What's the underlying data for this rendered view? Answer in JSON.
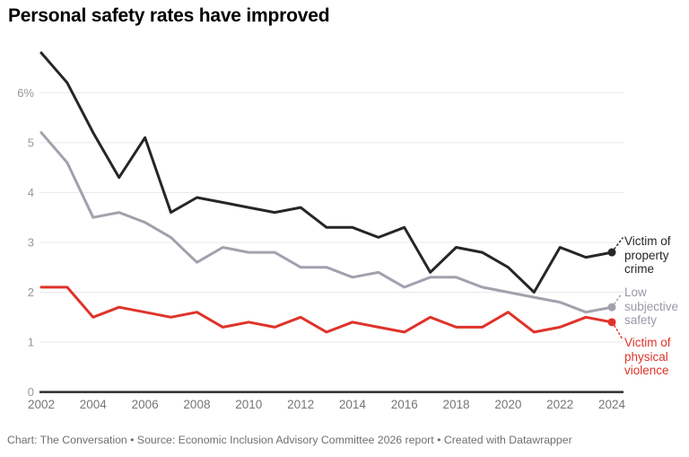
{
  "chart_data": {
    "type": "line",
    "title": "Personal safety rates have improved",
    "x": [
      2002,
      2003,
      2004,
      2005,
      2006,
      2007,
      2008,
      2009,
      2010,
      2011,
      2012,
      2013,
      2014,
      2015,
      2016,
      2017,
      2018,
      2019,
      2020,
      2021,
      2022,
      2023,
      2024
    ],
    "x_tick_labels": [
      "2002",
      "2004",
      "2006",
      "2008",
      "2010",
      "2012",
      "2014",
      "2016",
      "2018",
      "2020",
      "2022",
      "2024"
    ],
    "y_ticks": [
      {
        "value": 0,
        "label": "0"
      },
      {
        "value": 1,
        "label": "1"
      },
      {
        "value": 2,
        "label": "2"
      },
      {
        "value": 3,
        "label": "3"
      },
      {
        "value": 4,
        "label": "4"
      },
      {
        "value": 5,
        "label": "5"
      },
      {
        "value": 6,
        "label": "6%"
      }
    ],
    "ylim": [
      0,
      7
    ],
    "grid": "horizontal-only",
    "legend_position": "right-of-line-ends",
    "series": [
      {
        "name": "Victim of property crime",
        "color": "#262626",
        "values": [
          6.8,
          6.2,
          5.2,
          4.3,
          5.1,
          3.6,
          3.9,
          3.8,
          3.7,
          3.6,
          3.7,
          3.3,
          3.3,
          3.1,
          3.3,
          2.4,
          2.9,
          2.8,
          2.5,
          2.0,
          2.9,
          2.7,
          2.8
        ]
      },
      {
        "name": "Low subjective safety",
        "color": "#a3a0ae",
        "values": [
          5.2,
          4.6,
          3.5,
          3.6,
          3.4,
          3.1,
          2.6,
          2.9,
          2.8,
          2.8,
          2.5,
          2.5,
          2.3,
          2.4,
          2.1,
          2.3,
          2.3,
          2.1,
          2.0,
          1.9,
          1.8,
          1.6,
          1.7
        ]
      },
      {
        "name": "Victim of physical violence",
        "color": "#df332a",
        "values": [
          2.1,
          2.1,
          1.5,
          1.7,
          1.6,
          1.5,
          1.6,
          1.3,
          1.4,
          1.3,
          1.5,
          1.2,
          1.4,
          1.3,
          1.2,
          1.5,
          1.3,
          1.3,
          1.6,
          1.2,
          1.3,
          1.5,
          1.4
        ]
      }
    ],
    "axis_colors": {
      "gridline": "#e8e8e8",
      "baseline": "#2d2d2d",
      "tick_text": "#767676"
    }
  },
  "footer": {
    "text": "Chart: The Conversation • Source: Economic Inclusion Advisory Committee 2026 report • Created with Datawrapper"
  }
}
